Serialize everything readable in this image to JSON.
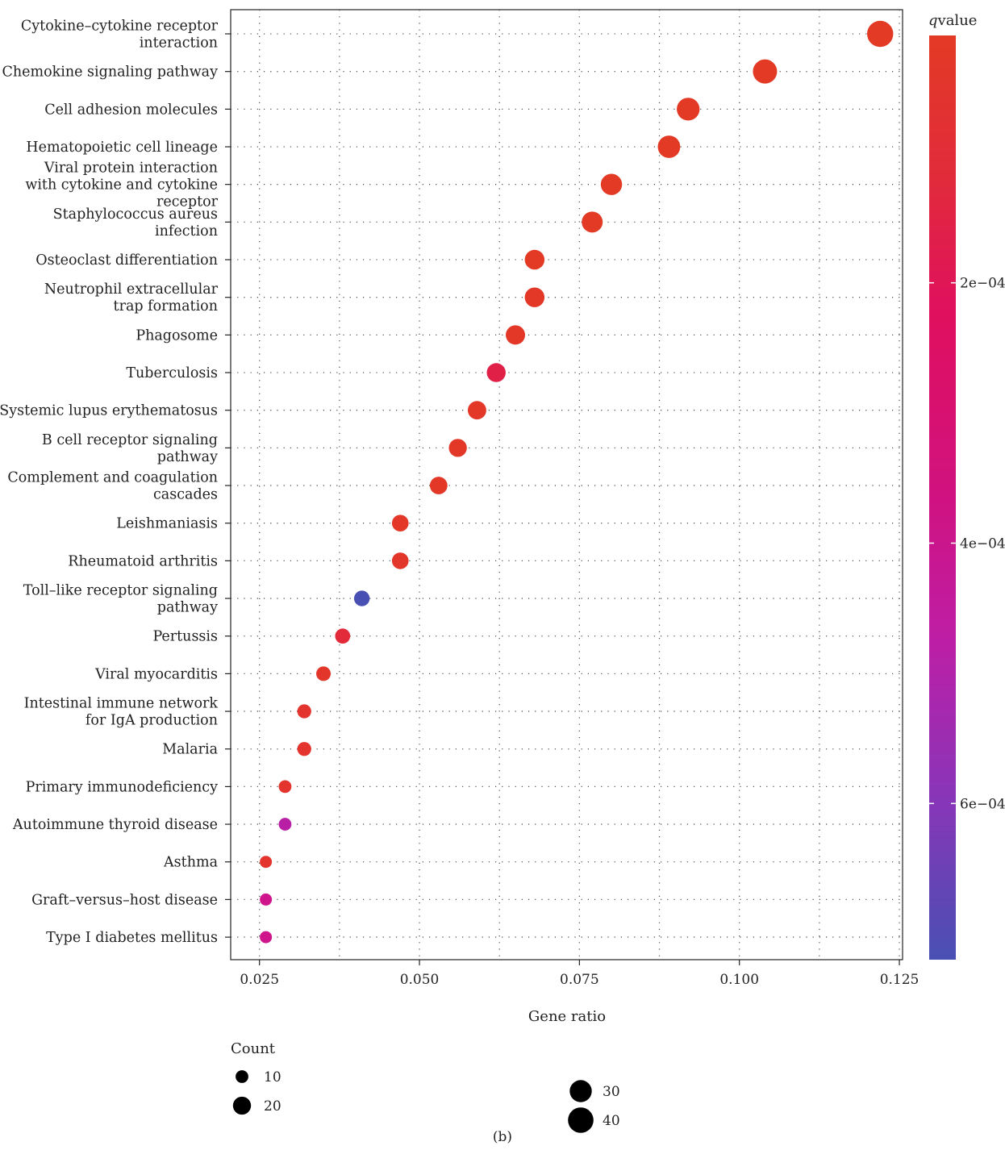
{
  "chart_data": {
    "type": "scatter",
    "subtype": "dot-plot",
    "xlabel": "Gene ratio",
    "xlim": [
      0.0205,
      0.1255
    ],
    "x_ticks": [
      0.025,
      0.05,
      0.075,
      0.1,
      0.125
    ],
    "x_tick_labels": [
      "0.025",
      "0.050",
      "0.075",
      "0.100",
      "0.125"
    ],
    "x_minor_grid": [
      0.0375,
      0.0625,
      0.0875,
      0.1125
    ],
    "grid": "dotted",
    "categories": [
      {
        "label": [
          "Cytokine–cytokine receptor",
          "interaction"
        ],
        "x": 0.122,
        "count": 42,
        "qvalue": 1e-05
      },
      {
        "label": [
          "Chemokine signaling pathway"
        ],
        "x": 0.104,
        "count": 36,
        "qvalue": 1e-05
      },
      {
        "label": [
          "Cell adhesion molecules"
        ],
        "x": 0.092,
        "count": 32,
        "qvalue": 1e-05
      },
      {
        "label": [
          "Hematopoietic cell lineage"
        ],
        "x": 0.089,
        "count": 31,
        "qvalue": 1e-05
      },
      {
        "label": [
          "Viral protein interaction",
          "with cytokine and cytokine",
          "receptor"
        ],
        "x": 0.08,
        "count": 28,
        "qvalue": 1e-05
      },
      {
        "label": [
          "Staphylococcus aureus",
          "infection"
        ],
        "x": 0.077,
        "count": 27,
        "qvalue": 1e-05
      },
      {
        "label": [
          "Osteoclast differentiation"
        ],
        "x": 0.068,
        "count": 24,
        "qvalue": 1e-05
      },
      {
        "label": [
          "Neutrophil extracellular",
          "trap formation"
        ],
        "x": 0.068,
        "count": 24,
        "qvalue": 2e-05
      },
      {
        "label": [
          "Phagosome"
        ],
        "x": 0.065,
        "count": 23,
        "qvalue": 2e-05
      },
      {
        "label": [
          "Tuberculosis"
        ],
        "x": 0.062,
        "count": 22,
        "qvalue": 0.00014
      },
      {
        "label": [
          "Systemic lupus erythematosus"
        ],
        "x": 0.059,
        "count": 21,
        "qvalue": 2e-05
      },
      {
        "label": [
          "B cell receptor signaling",
          "pathway"
        ],
        "x": 0.056,
        "count": 20,
        "qvalue": 2e-05
      },
      {
        "label": [
          "Complement and coagulation",
          "cascades"
        ],
        "x": 0.053,
        "count": 19,
        "qvalue": 2e-05
      },
      {
        "label": [
          "Leishmaniasis"
        ],
        "x": 0.047,
        "count": 17,
        "qvalue": 2e-05
      },
      {
        "label": [
          "Rheumatoid arthritis"
        ],
        "x": 0.047,
        "count": 17,
        "qvalue": 3e-05
      },
      {
        "label": [
          "Toll–like receptor signaling",
          "pathway"
        ],
        "x": 0.041,
        "count": 15,
        "qvalue": 0.00072
      },
      {
        "label": [
          "Pertussis"
        ],
        "x": 0.038,
        "count": 14,
        "qvalue": 9e-05
      },
      {
        "label": [
          "Viral myocarditis"
        ],
        "x": 0.035,
        "count": 13,
        "qvalue": 3e-05
      },
      {
        "label": [
          "Intestinal immune network",
          "for IgA production"
        ],
        "x": 0.032,
        "count": 12,
        "qvalue": 4e-05
      },
      {
        "label": [
          "Malaria"
        ],
        "x": 0.032,
        "count": 12,
        "qvalue": 4e-05
      },
      {
        "label": [
          "Primary immunodeficiency"
        ],
        "x": 0.029,
        "count": 10,
        "qvalue": 4e-05
      },
      {
        "label": [
          "Autoimmune thyroid disease"
        ],
        "x": 0.029,
        "count": 10,
        "qvalue": 0.00045
      },
      {
        "label": [
          "Asthma"
        ],
        "x": 0.026,
        "count": 9,
        "qvalue": 4e-05
      },
      {
        "label": [
          "Graft–versus–host disease"
        ],
        "x": 0.026,
        "count": 9,
        "qvalue": 0.00035
      },
      {
        "label": [
          "Type I diabetes mellitus"
        ],
        "x": 0.026,
        "count": 9,
        "qvalue": 0.00035
      }
    ],
    "color_legend": {
      "title_italic": "q",
      "title_rest": "value",
      "range": [
        1e-05,
        0.00072
      ],
      "ticks": [
        0.0002,
        0.0004,
        0.0006
      ],
      "tick_labels": [
        "2e−04",
        "4e−04",
        "6e−04"
      ],
      "colors": [
        "#e33a25",
        "#e0105e",
        "#c8179e",
        "#8a35b8",
        "#4950b3"
      ],
      "position": "right"
    },
    "size_legend": {
      "title": "Count",
      "entries": [
        {
          "label": "10",
          "count": 10
        },
        {
          "label": "20",
          "count": 20
        },
        {
          "label": "30",
          "count": 30
        },
        {
          "label": "40",
          "count": 40
        }
      ],
      "position": "bottom"
    },
    "caption": "(b)"
  }
}
